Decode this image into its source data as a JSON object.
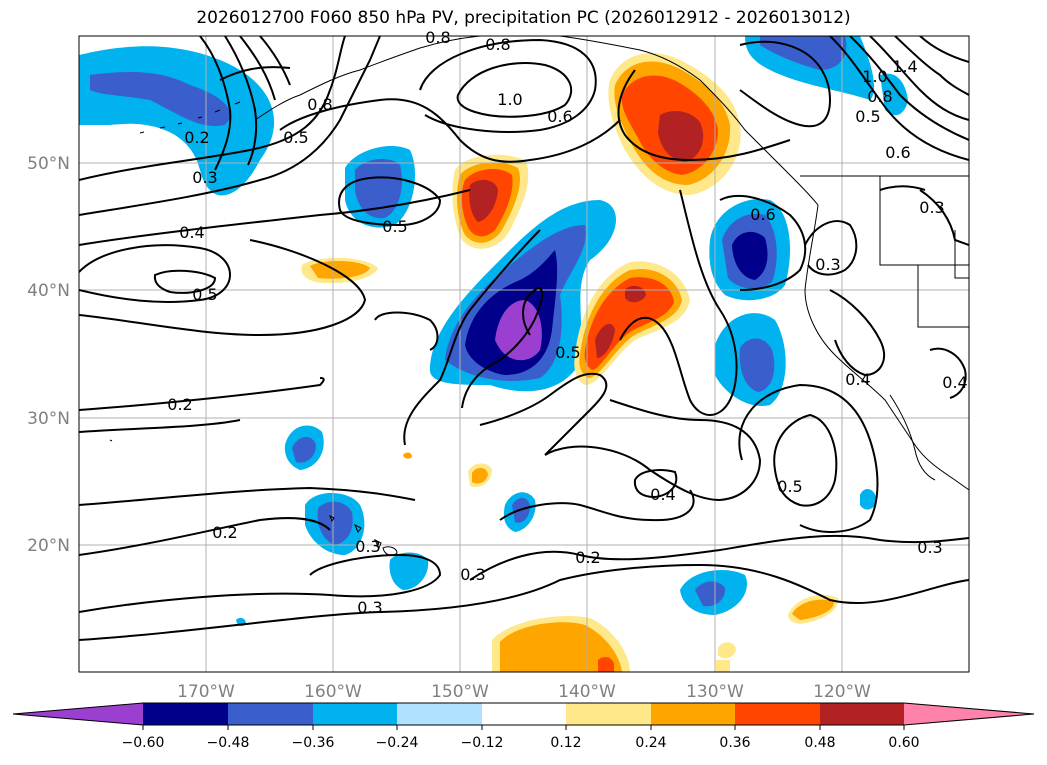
{
  "title": "2026012700 F060 850 hPa PV, precipitation PC (2026012912 - 2026013012)",
  "map": {
    "lon_labels": [
      "170°W",
      "160°W",
      "150°W",
      "140°W",
      "130°W",
      "120°W"
    ],
    "lat_labels": [
      "50°N",
      "40°N",
      "30°N",
      "20°N"
    ],
    "tick_color": "#808080",
    "grid_color": "#b0b0b0"
  },
  "colorbar": {
    "tick_labels": [
      "−0.60",
      "−0.48",
      "−0.36",
      "−0.24",
      "−0.12",
      "0.12",
      "0.24",
      "0.36",
      "0.48",
      "0.60"
    ],
    "colors": [
      "#9a3fd0",
      "#00008b",
      "#3a5fcd",
      "#00b2ee",
      "#b0e2ff",
      "#ffffff",
      "#ffe88a",
      "#ffa500",
      "#ff4500",
      "#b22222",
      "#ff82ab"
    ]
  },
  "contour_labels": [
    "0.8",
    "1.0",
    "0.6",
    "0.8",
    "0.5",
    "0.2",
    "0.3",
    "0.4",
    "0.5",
    "0.5",
    "0.6",
    "0.3",
    "0.3",
    "0.5",
    "0.2",
    "0.4",
    "0.5",
    "0.2",
    "0.3",
    "0.2",
    "0.3",
    "0.3",
    "0.4",
    "1.4",
    "1.0",
    "0.8",
    "0.5",
    "0.6",
    "0.4",
    "0.8"
  ]
}
